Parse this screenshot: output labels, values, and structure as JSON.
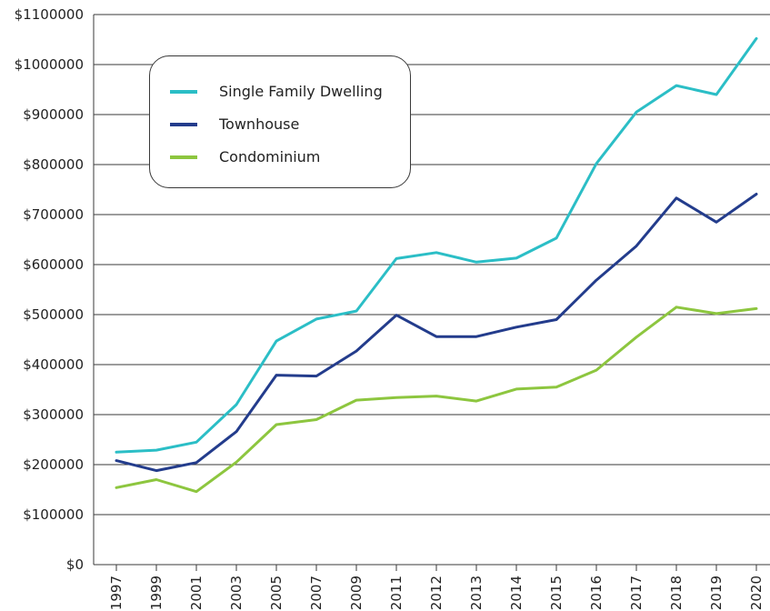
{
  "chart_data": {
    "type": "line",
    "categories": [
      "1997",
      "1999",
      "2001",
      "2003",
      "2005",
      "2007",
      "2009",
      "2011",
      "2012",
      "2013",
      "2014",
      "2015",
      "2016",
      "2017",
      "2018",
      "2019",
      "2020"
    ],
    "series": [
      {
        "name": "Single Family Dwelling",
        "color": "#2bbec6",
        "values": [
          225000,
          229000,
          245000,
          320000,
          447000,
          491000,
          507000,
          612000,
          624000,
          605000,
          613000,
          653000,
          802000,
          905000,
          958000,
          940000,
          1052000
        ]
      },
      {
        "name": "Townhouse",
        "color": "#233c8c",
        "values": [
          208000,
          188000,
          204000,
          266000,
          379000,
          377000,
          427000,
          499000,
          456000,
          456000,
          475000,
          490000,
          569000,
          637000,
          733000,
          685000,
          741000
        ]
      },
      {
        "name": "Condominium",
        "color": "#8dc63f",
        "values": [
          154000,
          170000,
          146000,
          205000,
          280000,
          290000,
          329000,
          334000,
          337000,
          327000,
          351000,
          355000,
          389000,
          455000,
          515000,
          502000,
          512000
        ]
      }
    ],
    "y_ticks": [
      "$0",
      "$100000",
      "$200000",
      "$300000",
      "$400000",
      "$500000",
      "$600000",
      "$700000",
      "$800000",
      "$900000",
      "$1000000",
      "$1100000"
    ],
    "ylim": [
      0,
      1100000
    ],
    "grid": "horizontal",
    "legend_position": "top-left",
    "title": "",
    "xlabel": "",
    "ylabel": ""
  }
}
